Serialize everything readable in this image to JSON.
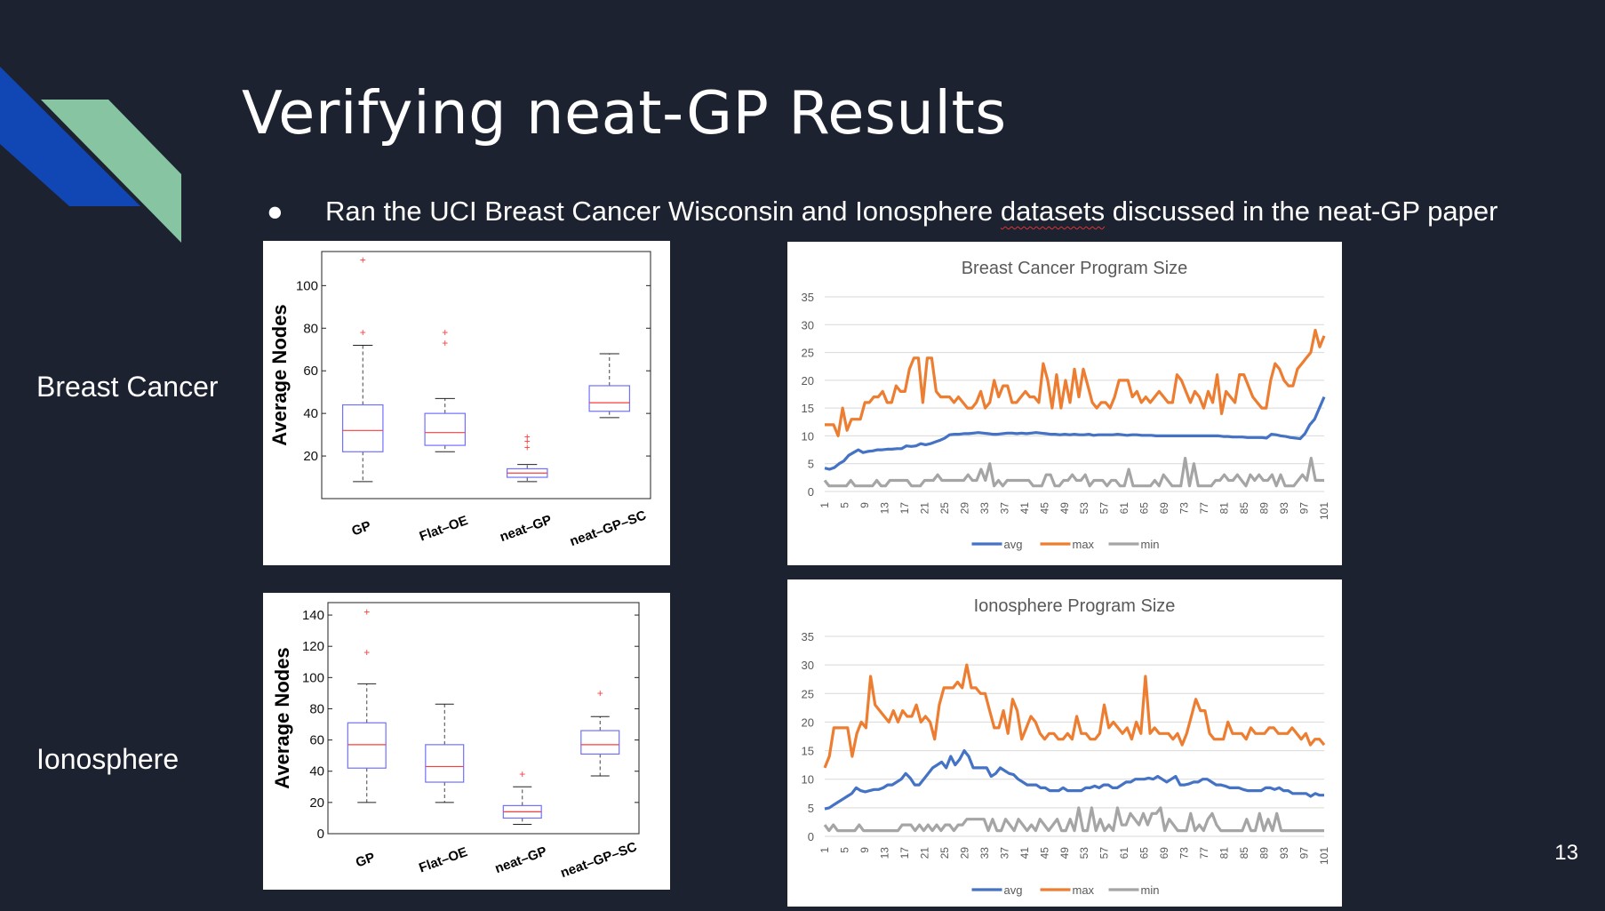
{
  "slide": {
    "title": "Verifying neat-GP Results",
    "bullet_prefix": "Ran the UCI Breast Cancer Wisconsin and Ionosphere ",
    "bullet_underlined": "datasets",
    "bullet_suffix": " discussed in the neat-GP paper",
    "row_labels": [
      "Breast Cancer",
      "Ionosphere"
    ],
    "page_number": "13",
    "colors": {
      "background": "#1c2230",
      "deco_blue": "#1147b5",
      "deco_green": "#86c4a2"
    }
  },
  "chart_data": [
    {
      "type": "box",
      "ylabel": "Average Nodes",
      "categories": [
        "GP",
        "Flat–OE",
        "neat–GP",
        "neat–GP–SC"
      ],
      "yticks": [
        20,
        40,
        60,
        80,
        100
      ],
      "ylim": [
        0,
        116
      ],
      "boxes": [
        {
          "whisker_low": 8,
          "q1": 22,
          "median": 32,
          "q3": 44,
          "whisker_high": 72,
          "outliers": [
            78,
            112
          ]
        },
        {
          "whisker_low": 22,
          "q1": 25,
          "median": 31,
          "q3": 40,
          "whisker_high": 47,
          "outliers": [
            73,
            78
          ]
        },
        {
          "whisker_low": 8,
          "q1": 10,
          "median": 12,
          "q3": 14,
          "whisker_high": 16,
          "outliers": [
            24,
            27,
            29
          ]
        },
        {
          "whisker_low": 38,
          "q1": 41,
          "median": 45,
          "q3": 53,
          "whisker_high": 68,
          "outliers": []
        }
      ],
      "colors": {
        "box": "#7070ff",
        "median": "#ff3b3b",
        "outlier": "#ff3b3b",
        "whisker": "#444444"
      }
    },
    {
      "type": "line",
      "title": "Breast Cancer Program Size",
      "x_tick_labels": [
        "1",
        "5",
        "9",
        "13",
        "17",
        "21",
        "25",
        "29",
        "33",
        "37",
        "41",
        "45",
        "49",
        "53",
        "57",
        "61",
        "65",
        "69",
        "73",
        "77",
        "81",
        "85",
        "89",
        "93",
        "97",
        "101"
      ],
      "ylim": [
        0,
        35
      ],
      "yticks": [
        0,
        5,
        10,
        15,
        20,
        25,
        30,
        35
      ],
      "legend_position": "bottom",
      "series": [
        {
          "name": "avg",
          "color": "#4472c4",
          "values": [
            4.2,
            4,
            4.3,
            5,
            5.5,
            6.5,
            7,
            7.5,
            7,
            7.2,
            7.3,
            7.5,
            7.5,
            7.6,
            7.6,
            7.7,
            7.7,
            8.2,
            8.1,
            8.2,
            8.6,
            8.4,
            8.6,
            8.9,
            9.2,
            9.6,
            10.2,
            10.3,
            10.3,
            10.4,
            10.4,
            10.5,
            10.6,
            10.5,
            10.4,
            10.3,
            10.3,
            10.4,
            10.5,
            10.5,
            10.4,
            10.5,
            10.4,
            10.5,
            10.6,
            10.5,
            10.4,
            10.3,
            10.3,
            10.2,
            10.3,
            10.2,
            10.3,
            10.2,
            10.2,
            10.3,
            10.1,
            10.2,
            10.2,
            10.2,
            10.2,
            10.3,
            10.2,
            10.1,
            10.2,
            10.2,
            10.1,
            10.1,
            10.1,
            10,
            10,
            10,
            10,
            10,
            10,
            10,
            10,
            10,
            10,
            10,
            10,
            10,
            10,
            9.9,
            9.9,
            9.8,
            9.8,
            9.8,
            9.7,
            9.7,
            9.7,
            9.7,
            9.6,
            10.3,
            10.2,
            10,
            9.9,
            9.7,
            9.6,
            9.5,
            10.4,
            12,
            13,
            15,
            17
          ]
        },
        {
          "name": "max",
          "color": "#ed7d31",
          "values": [
            12,
            12,
            12,
            10,
            15,
            11,
            13,
            13,
            13,
            16,
            16,
            17,
            17,
            18,
            16,
            16,
            19,
            18,
            18,
            22,
            24,
            24,
            16,
            24,
            24,
            18,
            17,
            17,
            17,
            16,
            17,
            16,
            15,
            15,
            16,
            18,
            15,
            16,
            20,
            17,
            19,
            19,
            16,
            16,
            17,
            18,
            17,
            17,
            16,
            23,
            20,
            15,
            21,
            15,
            20,
            16,
            22,
            17,
            22,
            19,
            16,
            15,
            16,
            16,
            15,
            17,
            20,
            20,
            20,
            17,
            18,
            16,
            17,
            16,
            17,
            18,
            17,
            16,
            16,
            21,
            20,
            18,
            16,
            18,
            17,
            15,
            18,
            16,
            21,
            14,
            18,
            17,
            16,
            21,
            21,
            19,
            17,
            16,
            15,
            15,
            20,
            23,
            22,
            20,
            19,
            19,
            22,
            23,
            24,
            25,
            29,
            26,
            28
          ]
        },
        {
          "name": "min",
          "color": "#a5a5a5",
          "values": [
            2,
            1,
            1,
            1,
            1,
            1,
            2,
            1,
            1,
            1,
            1,
            1,
            2,
            1,
            1,
            2,
            2,
            2,
            2,
            2,
            1,
            1,
            1,
            2,
            2,
            2,
            3,
            2,
            2,
            2,
            2,
            2,
            2,
            3,
            2,
            2,
            4,
            2,
            5,
            1,
            2,
            1,
            2,
            2,
            2,
            2,
            2,
            2,
            1,
            1,
            1,
            3,
            3,
            1,
            1,
            2,
            2,
            3,
            2,
            2,
            3,
            1,
            2,
            2,
            2,
            1,
            2,
            2,
            1,
            1,
            4,
            1,
            1,
            1,
            1,
            1,
            2,
            1,
            3,
            2,
            1,
            1,
            1,
            6,
            1,
            5,
            1,
            1,
            1,
            1,
            2,
            2,
            3,
            2,
            2,
            3,
            2,
            1,
            3,
            2,
            3,
            2,
            2,
            3,
            1,
            3,
            1,
            1,
            1,
            2,
            3,
            2,
            6,
            2,
            2,
            2
          ]
        }
      ]
    },
    {
      "type": "box",
      "ylabel": "Average Nodes",
      "categories": [
        "GP",
        "Flat–OE",
        "neat–GP",
        "neat–GP–SC"
      ],
      "yticks": [
        0,
        20,
        40,
        60,
        80,
        100,
        120,
        140
      ],
      "ylim": [
        0,
        148
      ],
      "boxes": [
        {
          "whisker_low": 20,
          "q1": 42,
          "median": 57,
          "q3": 71,
          "whisker_high": 96,
          "outliers": [
            116,
            142
          ]
        },
        {
          "whisker_low": 20,
          "q1": 33,
          "median": 43,
          "q3": 57,
          "whisker_high": 83,
          "outliers": []
        },
        {
          "whisker_low": 6,
          "q1": 10,
          "median": 14,
          "q3": 18,
          "whisker_high": 30,
          "outliers": [
            38
          ]
        },
        {
          "whisker_low": 37,
          "q1": 51,
          "median": 57,
          "q3": 66,
          "whisker_high": 75,
          "outliers": [
            90
          ]
        }
      ],
      "colors": {
        "box": "#7070ff",
        "median": "#ff3b3b",
        "outlier": "#ff3b3b",
        "whisker": "#444444"
      }
    },
    {
      "type": "line",
      "title": "Ionosphere  Program Size",
      "x_tick_labels": [
        "1",
        "5",
        "9",
        "13",
        "17",
        "21",
        "25",
        "29",
        "33",
        "37",
        "41",
        "45",
        "49",
        "53",
        "57",
        "61",
        "65",
        "69",
        "73",
        "77",
        "81",
        "85",
        "89",
        "93",
        "97",
        "101"
      ],
      "ylim": [
        0,
        35
      ],
      "yticks": [
        0,
        5,
        10,
        15,
        20,
        25,
        30,
        35
      ],
      "legend_position": "bottom",
      "series": [
        {
          "name": "avg",
          "color": "#4472c4",
          "values": [
            4.8,
            5,
            5.5,
            6,
            6.5,
            7,
            7.5,
            8.5,
            8,
            7.8,
            8,
            8.2,
            8.2,
            8.5,
            9,
            9,
            9.5,
            10,
            11,
            10.2,
            9,
            9,
            10,
            11,
            12,
            12.5,
            13,
            12,
            14,
            12.5,
            13.5,
            15,
            14,
            12,
            12,
            12,
            12,
            10.5,
            11,
            12,
            11.5,
            11,
            10.8,
            10,
            9.5,
            9,
            9,
            9,
            8.5,
            8.5,
            8,
            8,
            8,
            8.5,
            8,
            8,
            8,
            8,
            8.5,
            8.5,
            8.8,
            8.5,
            9,
            9,
            8.5,
            8.5,
            9,
            9.5,
            9.5,
            10,
            10,
            10,
            10.2,
            10,
            10.5,
            10,
            9.5,
            10,
            10.5,
            9,
            9,
            9.2,
            9.5,
            9.5,
            10,
            10,
            9.5,
            9,
            9,
            8.8,
            8.5,
            8.5,
            8.5,
            8.2,
            8,
            8,
            8,
            8,
            8.5,
            8.5,
            8.2,
            8.5,
            8,
            8,
            7.5,
            7.5,
            7.5,
            7.5,
            7,
            7.5,
            7.2,
            7.2
          ]
        },
        {
          "name": "max",
          "color": "#ed7d31",
          "values": [
            12,
            14,
            19,
            19,
            19,
            19,
            14,
            18,
            20,
            19,
            28,
            23,
            22,
            21,
            20,
            22,
            20,
            22,
            21,
            21,
            23,
            20,
            21,
            20,
            17,
            23,
            26,
            26,
            26,
            27,
            26,
            30,
            26,
            26,
            25,
            25,
            22,
            19,
            19,
            22,
            18,
            24,
            22,
            17,
            19,
            21,
            20,
            18,
            17,
            18,
            18,
            17,
            17,
            18,
            17,
            21,
            18,
            18,
            17,
            17,
            18,
            23,
            19,
            20,
            19,
            18,
            19,
            17,
            20,
            18,
            28,
            18,
            19,
            18,
            18,
            18,
            17,
            18,
            16,
            18,
            21,
            24,
            22,
            22,
            18,
            17,
            17,
            17,
            20,
            18,
            18,
            18,
            17,
            19,
            18,
            18,
            18,
            19,
            19,
            18,
            18,
            18,
            19,
            18,
            17,
            18,
            16,
            17,
            17,
            16
          ]
        },
        {
          "name": "min",
          "color": "#a5a5a5",
          "values": [
            2,
            1,
            2,
            1,
            1,
            1,
            1,
            1,
            2,
            1,
            1,
            1,
            1,
            1,
            1,
            1,
            1,
            1,
            2,
            2,
            2,
            1,
            2,
            1,
            2,
            1,
            2,
            1,
            2,
            2,
            1,
            2,
            2,
            3,
            3,
            3,
            3,
            3,
            1,
            3,
            1,
            1,
            3,
            2,
            1,
            3,
            2,
            1,
            2,
            1,
            3,
            2,
            1,
            2,
            3,
            1,
            1,
            3,
            1,
            5,
            1,
            1,
            5,
            1,
            3,
            1,
            2,
            1,
            5,
            2,
            2,
            4,
            3,
            2,
            4,
            2,
            4,
            4,
            5,
            1,
            3,
            2,
            1,
            1,
            1,
            4,
            1,
            2,
            1,
            3,
            4,
            2,
            1,
            1,
            1,
            1,
            1,
            1,
            3,
            1,
            1,
            4,
            1,
            3,
            1,
            4,
            1,
            1,
            1,
            1,
            1,
            1,
            1,
            1,
            1,
            1,
            1
          ]
        }
      ]
    }
  ]
}
